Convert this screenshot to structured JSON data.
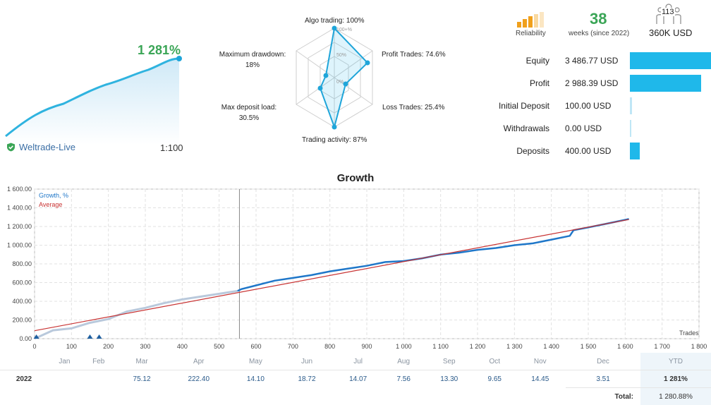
{
  "summary": {
    "growth_total": "1 281%",
    "broker": "Weltrade-Live",
    "leverage": "1:100"
  },
  "radar": {
    "labels": {
      "algo": "Algo trading: 100%",
      "profit": "Profit Trades: 74.6%",
      "loss": "Loss Trades: 25.4%",
      "activity": "Trading activity: 87%",
      "deposit_load_title": "Max deposit load:",
      "deposit_load_val": "30.5%",
      "drawdown_title": "Maximum drawdown:",
      "drawdown_val": "18%"
    },
    "grid_labels": [
      "100+%",
      "50%",
      "0%"
    ],
    "values": {
      "algo": 100,
      "profit": 74.6,
      "loss": 25.4,
      "activity": 87,
      "deposit_load": 30.5,
      "drawdown": 18
    }
  },
  "stats": {
    "reliability_label": "Reliability",
    "weeks_value": "38",
    "weeks_label": "weeks (since 2022)",
    "subscribers": "113",
    "funds": "360K USD",
    "rows": [
      {
        "label": "Equity",
        "value": "3 486.77 USD",
        "fraction": 1.0
      },
      {
        "label": "Profit",
        "value": "2 988.39 USD",
        "fraction": 0.857
      },
      {
        "label": "Initial Deposit",
        "value": "100.00 USD",
        "fraction": 0.029
      },
      {
        "label": "Withdrawals",
        "value": "0.00 USD",
        "fraction": 0.0
      },
      {
        "label": "Deposits",
        "value": "400.00 USD",
        "fraction": 0.115
      }
    ]
  },
  "chart_data": {
    "type": "line",
    "title": "Growth",
    "xlabel": "Trades",
    "ylabel": "",
    "xlim": [
      0,
      1800
    ],
    "ylim": [
      0,
      1600
    ],
    "x_ticks": [
      "0",
      "100",
      "200",
      "300",
      "400",
      "500",
      "600",
      "700",
      "800",
      "900",
      "1 000",
      "1 100",
      "1 200",
      "1 300",
      "1 400",
      "1 500",
      "1 600",
      "1 700",
      "1 800"
    ],
    "y_ticks": [
      "0.00",
      "200.00",
      "400.00",
      "600.00",
      "800.00",
      "1 000.00",
      "1 200.00",
      "1 400.00",
      "1 600.00"
    ],
    "legend": [
      "Growth, %",
      "Average"
    ],
    "series": [
      {
        "name": "Growth, %",
        "x": [
          0,
          50,
          100,
          150,
          200,
          250,
          300,
          350,
          400,
          450,
          500,
          550,
          560,
          600,
          650,
          700,
          750,
          800,
          850,
          900,
          950,
          1000,
          1050,
          1100,
          1150,
          1200,
          1250,
          1300,
          1350,
          1400,
          1450,
          1460,
          1500,
          1550,
          1610
        ],
        "y": [
          0,
          90,
          110,
          170,
          210,
          290,
          330,
          380,
          420,
          450,
          480,
          510,
          530,
          570,
          620,
          650,
          680,
          720,
          750,
          780,
          820,
          830,
          860,
          900,
          920,
          950,
          970,
          1000,
          1020,
          1060,
          1100,
          1160,
          1190,
          1230,
          1280
        ]
      },
      {
        "name": "Average",
        "x": [
          0,
          1610
        ],
        "y": [
          85,
          1275
        ]
      }
    ],
    "markers_x": [
      5,
      150,
      175
    ],
    "cursor_x": 555
  },
  "months_table": {
    "headers": [
      "Jan",
      "Feb",
      "Mar",
      "Apr",
      "May",
      "Jun",
      "Jul",
      "Aug",
      "Sep",
      "Oct",
      "Nov",
      "Dec",
      "YTD"
    ],
    "year": "2022",
    "values": [
      "",
      "",
      "75.12",
      "222.40",
      "14.10",
      "18.72",
      "14.07",
      "7.56",
      "13.30",
      "9.65",
      "14.45",
      "3.51",
      "1 281%"
    ],
    "total_label": "Total:",
    "total_value": "1 280.88%"
  },
  "colors": {
    "growth": "#1f77c9",
    "early": "#b9c9dc",
    "average": "#c83232",
    "accent": "#3aa556",
    "bar": "#1fb8ea"
  }
}
